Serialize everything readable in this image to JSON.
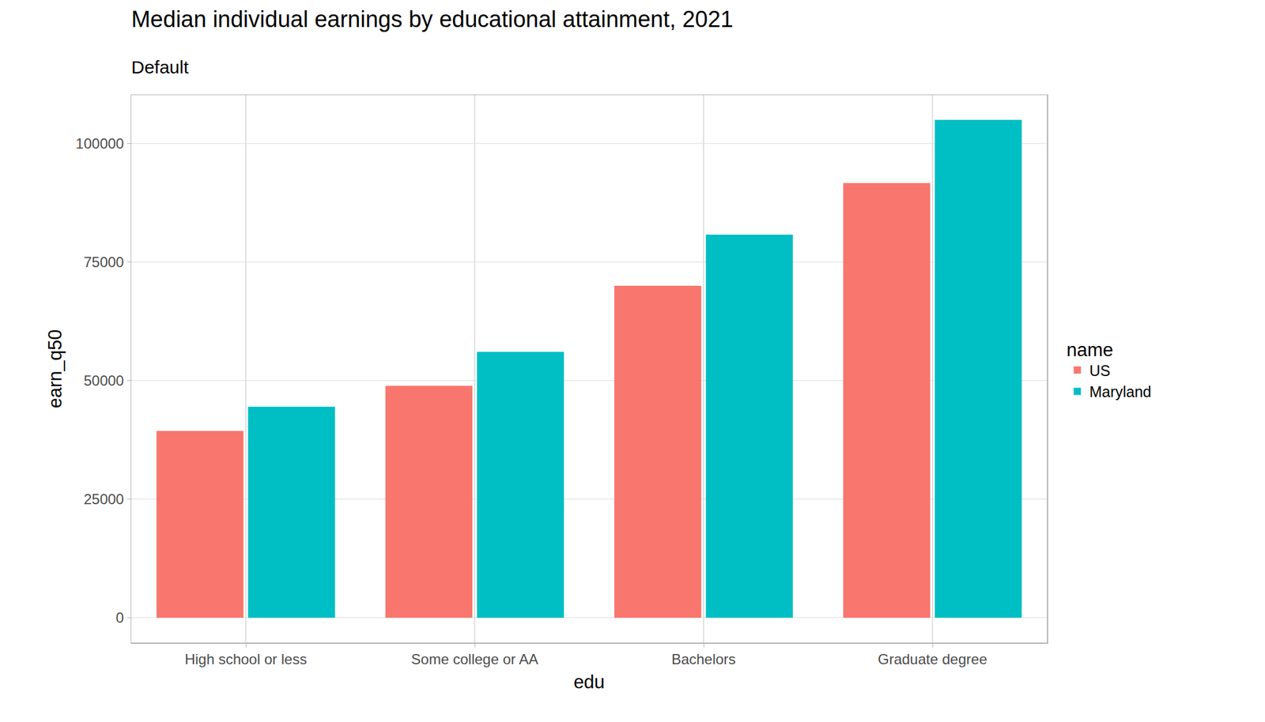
{
  "chart_data": {
    "type": "bar",
    "title": "Median individual earnings by educational attainment, 2021",
    "subtitle": "Default",
    "x_label": "edu",
    "y_label": "earn_q50",
    "categories": [
      "High school or less",
      "Some college or AA",
      "Bachelors",
      "Graduate degree"
    ],
    "series": [
      {
        "name": "US",
        "color": "#F8766D",
        "values": [
          39400,
          48900,
          70000,
          91700
        ]
      },
      {
        "name": "Maryland",
        "color": "#00BFC4",
        "values": [
          44500,
          56100,
          80800,
          105000
        ]
      }
    ],
    "ylim": [
      -5250,
      110250
    ],
    "yticks": [
      0,
      25000,
      50000,
      75000,
      100000
    ],
    "grid": true,
    "legend": "right",
    "legend_title": "name"
  }
}
